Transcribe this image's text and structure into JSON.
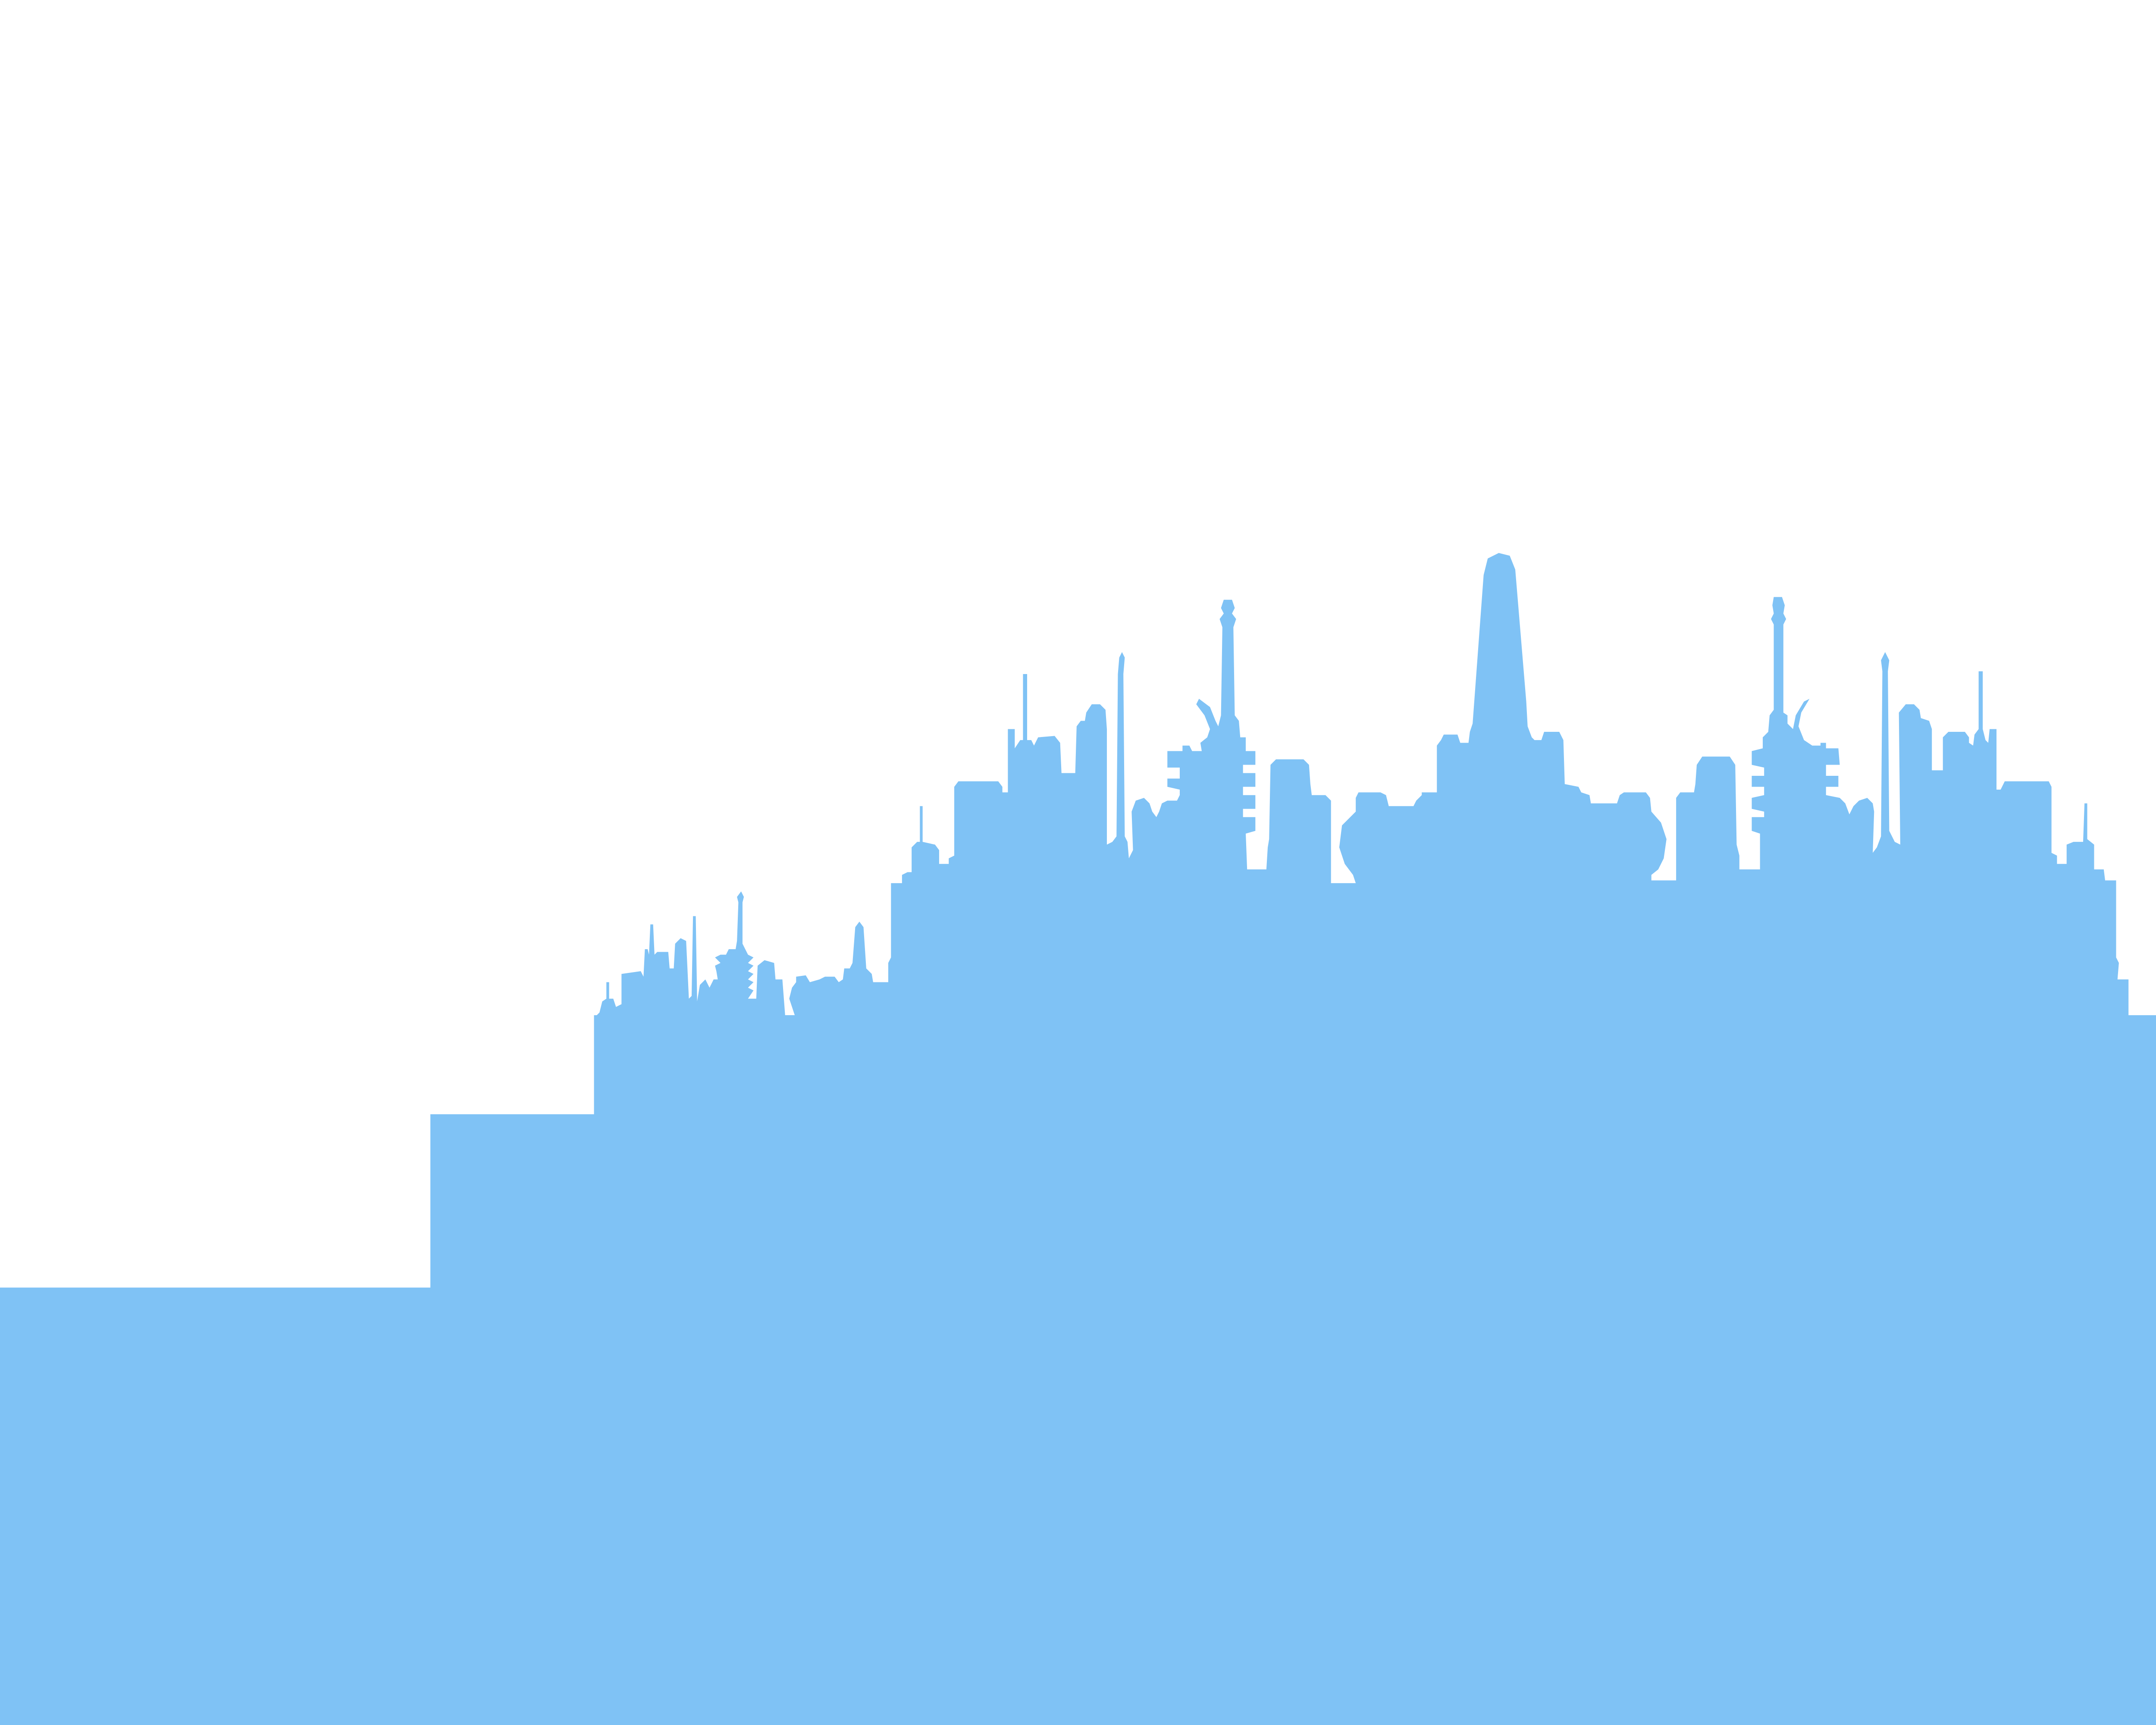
{
  "skyline_fill": "#7fc2f5",
  "background": "#ffffff"
}
